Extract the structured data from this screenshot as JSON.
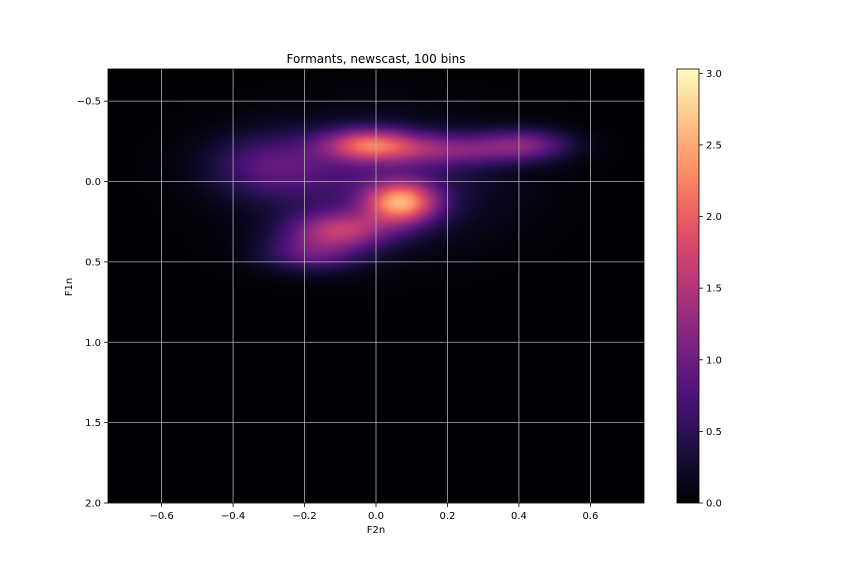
{
  "chart_data": {
    "type": "heatmap",
    "title": "Formants, newscast, 100 bins",
    "xlabel": "F2n",
    "ylabel": "F1n",
    "xlim": [
      -0.75,
      0.75
    ],
    "ylim": [
      2.0,
      -0.7
    ],
    "y_inverted": true,
    "xticks": [
      -0.6,
      -0.4,
      -0.2,
      0.0,
      0.2,
      0.4,
      0.6
    ],
    "xtick_labels": [
      "−0.6",
      "−0.4",
      "−0.2",
      "0.0",
      "0.2",
      "0.4",
      "0.6"
    ],
    "yticks": [
      -0.5,
      0.0,
      0.5,
      1.0,
      1.5,
      2.0
    ],
    "ytick_labels": [
      "−0.5",
      "0.0",
      "0.5",
      "1.0",
      "1.5",
      "2.0"
    ],
    "grid": true,
    "colormap": "magma",
    "colorbar": {
      "min": 0.0,
      "max": 3.03,
      "ticks": [
        0.0,
        0.5,
        1.0,
        1.5,
        2.0,
        2.5,
        3.0
      ],
      "tick_labels": [
        "0.0",
        "0.5",
        "1.0",
        "1.5",
        "2.0",
        "2.5",
        "3.0"
      ]
    },
    "bins": 100,
    "density_peaks": [
      {
        "x": 0.07,
        "y": 0.13,
        "value": 3.0
      },
      {
        "x": -0.02,
        "y": -0.23,
        "value": 2.3
      },
      {
        "x": -0.1,
        "y": 0.3,
        "value": 2.0
      },
      {
        "x": 0.42,
        "y": -0.23,
        "value": 1.3
      },
      {
        "x": -0.3,
        "y": -0.15,
        "value": 0.8
      }
    ]
  }
}
